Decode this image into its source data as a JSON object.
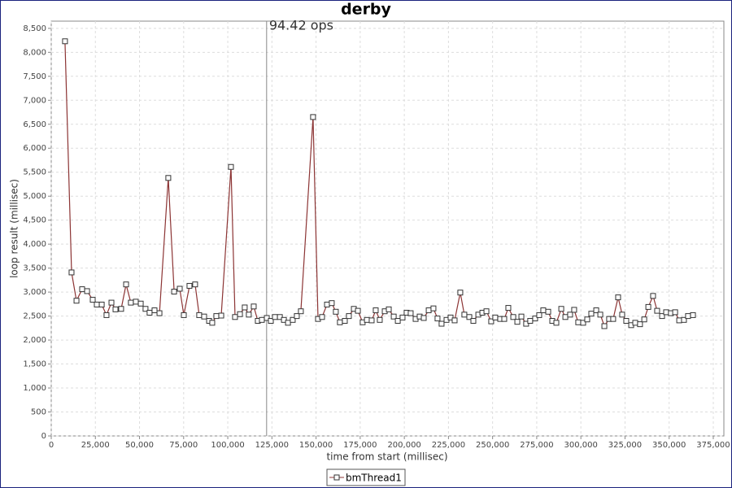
{
  "chart_data": {
    "type": "line",
    "title": "derby",
    "x_label": "time from start (millisec)",
    "y_label": "loop result (millisec)",
    "xlim": [
      0,
      381000
    ],
    "ylim": [
      0,
      8650
    ],
    "xticks": [
      0,
      {
        "value": 25000,
        "label": "25,000"
      },
      {
        "value": 50000,
        "label": "50,000"
      },
      {
        "value": 75000,
        "label": "75,000"
      },
      {
        "value": 100000,
        "label": "100,000"
      },
      {
        "value": 125000,
        "label": "125,000"
      },
      {
        "value": 150000,
        "label": "150,000"
      },
      {
        "value": 175000,
        "label": "175,000"
      },
      {
        "value": 200000,
        "label": "200,000"
      },
      {
        "value": 225000,
        "label": "225,000"
      },
      {
        "value": 250000,
        "label": "250,000"
      },
      {
        "value": 275000,
        "label": "275,000"
      },
      {
        "value": 300000,
        "label": "300,000"
      },
      {
        "value": 325000,
        "label": "325,000"
      },
      {
        "value": 350000,
        "label": "350,000"
      },
      {
        "value": 375000,
        "label": "375,000"
      }
    ],
    "yticks": [
      0,
      500,
      {
        "value": 1000,
        "label": "1,000"
      },
      {
        "value": 1500,
        "label": "1,500"
      },
      {
        "value": 2000,
        "label": "2,000"
      },
      {
        "value": 2500,
        "label": "2,500"
      },
      {
        "value": 3000,
        "label": "3,000"
      },
      {
        "value": 3500,
        "label": "3,500"
      },
      {
        "value": 4000,
        "label": "4,000"
      },
      {
        "value": 4500,
        "label": "4,500"
      },
      {
        "value": 5000,
        "label": "5,000"
      },
      {
        "value": 5500,
        "label": "5,500"
      },
      {
        "value": 6000,
        "label": "6,000"
      },
      {
        "value": 6500,
        "label": "6,500"
      },
      {
        "value": 7000,
        "label": "7,000"
      },
      {
        "value": 7500,
        "label": "7,500"
      },
      {
        "value": 8000,
        "label": "8,000"
      },
      {
        "value": 8500,
        "label": "8,500"
      }
    ],
    "grid": true,
    "legend": "bottom",
    "markers": [
      {
        "x": 122000,
        "label": "94.42 ops"
      }
    ],
    "x": [
      7800,
      11500,
      14300,
      17500,
      20300,
      23500,
      25800,
      28600,
      31300,
      34100,
      36400,
      39600,
      42400,
      45100,
      47900,
      50700,
      53400,
      55700,
      58500,
      61300,
      66300,
      69600,
      72800,
      75100,
      78300,
      81500,
      83800,
      86600,
      89400,
      91200,
      93500,
      96300,
      101800,
      104100,
      106900,
      109600,
      111900,
      114700,
      117000,
      119300,
      122100,
      124400,
      126700,
      129500,
      131800,
      134100,
      136800,
      139100,
      141400,
      148300,
      151100,
      153400,
      156200,
      158900,
      161200,
      163500,
      166300,
      168600,
      171400,
      173700,
      176400,
      178800,
      181500,
      183800,
      186100,
      188900,
      191200,
      194000,
      196300,
      199000,
      201300,
      203600,
      206400,
      208700,
      211000,
      213800,
      216500,
      218800,
      221100,
      223900,
      226200,
      228500,
      231700,
      234000,
      236800,
      239100,
      241900,
      244200,
      246500,
      249200,
      251500,
      254300,
      256600,
      258900,
      261700,
      264000,
      266300,
      269000,
      271300,
      274100,
      276400,
      278700,
      281500,
      283800,
      286100,
      288900,
      291200,
      293900,
      296200,
      298500,
      301300,
      303600,
      305900,
      308700,
      311000,
      313300,
      316000,
      318300,
      321100,
      323400,
      325700,
      328500,
      330800,
      333500,
      335900,
      338200,
      340900,
      343200,
      346000,
      348300,
      351000,
      353400,
      355700,
      358400,
      360700,
      363500
    ],
    "series": [
      {
        "name": "bmThread1",
        "color": "#8c3434",
        "marker_fill": "#ffffff",
        "values": [
          8230,
          3410,
          2820,
          3060,
          3020,
          2840,
          2740,
          2740,
          2520,
          2780,
          2640,
          2650,
          3160,
          2780,
          2800,
          2760,
          2650,
          2570,
          2620,
          2560,
          5380,
          3010,
          3070,
          2520,
          3130,
          3160,
          2520,
          2490,
          2400,
          2360,
          2500,
          2510,
          5610,
          2480,
          2540,
          2680,
          2530,
          2700,
          2400,
          2420,
          2460,
          2400,
          2480,
          2480,
          2420,
          2360,
          2420,
          2500,
          2600,
          6650,
          2440,
          2480,
          2740,
          2770,
          2590,
          2370,
          2400,
          2500,
          2650,
          2610,
          2370,
          2420,
          2410,
          2620,
          2420,
          2600,
          2640,
          2490,
          2400,
          2470,
          2570,
          2560,
          2440,
          2490,
          2460,
          2620,
          2660,
          2450,
          2340,
          2420,
          2470,
          2410,
          2990,
          2530,
          2480,
          2400,
          2530,
          2570,
          2600,
          2390,
          2470,
          2440,
          2440,
          2670,
          2480,
          2380,
          2490,
          2340,
          2400,
          2450,
          2520,
          2620,
          2590,
          2400,
          2360,
          2650,
          2480,
          2530,
          2630,
          2370,
          2360,
          2430,
          2550,
          2620,
          2530,
          2290,
          2440,
          2440,
          2890,
          2530,
          2400,
          2310,
          2360,
          2330,
          2430,
          2690,
          2920,
          2610,
          2500,
          2580,
          2560,
          2580,
          2410,
          2420,
          2500,
          2520
        ]
      }
    ]
  }
}
